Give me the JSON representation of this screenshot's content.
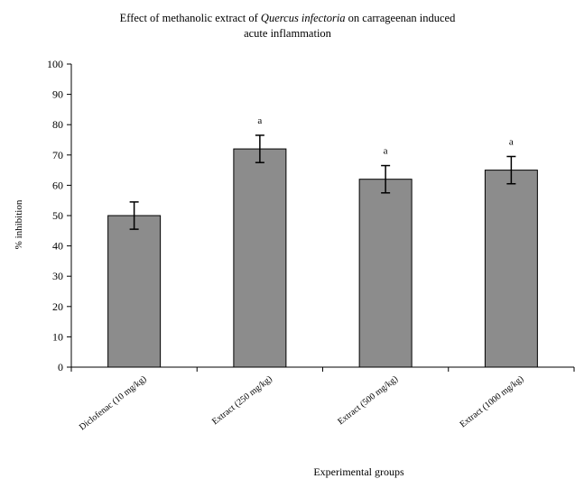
{
  "chart_data": {
    "type": "bar",
    "title": {
      "before_italic": "Effect of methanolic extract of ",
      "italic": "Quercus infectoria",
      "after_italic": " on carrageenan induced",
      "line2": "acute inflammation"
    },
    "xlabel": "Experimental groups",
    "ylabel": "% inhibition",
    "ylim": [
      0,
      100
    ],
    "yticks": [
      "0",
      "10",
      "20",
      "30",
      "40",
      "50",
      "60",
      "70",
      "80",
      "90",
      "100"
    ],
    "categories": [
      "Diclofenac (10 mg/kg)",
      "Extract (250 mg/kg)",
      "Extract (500 mg/kg)",
      "Extract (1000 mg/kg)"
    ],
    "series": [
      {
        "values": [
          50,
          72,
          62,
          65
        ],
        "errors": [
          4.5,
          4.5,
          4.5,
          4.5
        ],
        "annotations": [
          "",
          "a",
          "a",
          "a"
        ],
        "color": "#8c8c8c"
      }
    ],
    "grid": false,
    "legend": "none"
  }
}
